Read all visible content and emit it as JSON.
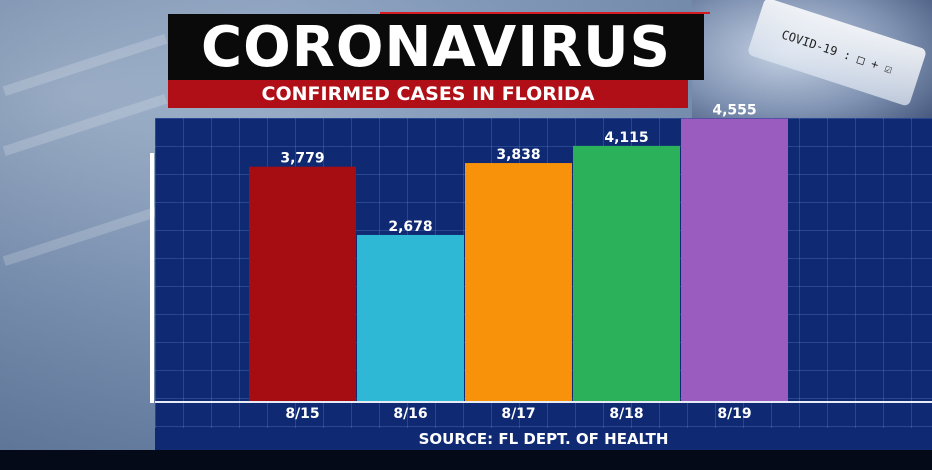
{
  "header": {
    "title": "CORONAVIRUS",
    "subtitle": "CONFIRMED CASES IN FLORIDA"
  },
  "tube_label": "COVID-19 : □ + ☑",
  "source": "SOURCE: FL DEPT. OF HEALTH",
  "colors": {
    "panel": "#0f2a73",
    "title_bg": "#0a0a0a",
    "subtitle_bg": "#b00f17"
  },
  "chart_data": {
    "type": "bar",
    "categories": [
      "8/15",
      "8/16",
      "8/17",
      "8/18",
      "8/19"
    ],
    "values": [
      3779,
      2678,
      3838,
      4115,
      4555
    ],
    "value_labels": [
      "3,779",
      "2,678",
      "3,838",
      "4,115",
      "4,555"
    ],
    "bar_colors": [
      "#a50d12",
      "#2fb7d6",
      "#f7920a",
      "#2bb15a",
      "#9a5cbf"
    ],
    "title": "",
    "xlabel": "",
    "ylabel": "",
    "ylim": [
      0,
      5000
    ],
    "grid": true,
    "legend": "none"
  }
}
